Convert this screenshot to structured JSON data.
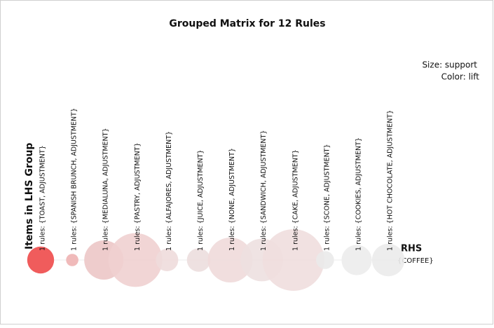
{
  "chart_data": {
    "type": "grouped-matrix",
    "title": "Grouped Matrix for 12 Rules",
    "size_label": "Size: support",
    "color_label": "Color: lift",
    "ylabel": "Items in LHS Group",
    "rhs_title": "RHS",
    "rhs_items": [
      "{COFFEE}"
    ],
    "categories": [
      "1 rules: {TOAST, ADJUSTMENT}",
      "1 rules: {SPANISH BRUNCH, ADJUSTMENT}",
      "1 rules: {MEDIALUNA, ADJUSTMENT}",
      "1 rules: {PASTRY, ADJUSTMENT}",
      "1 rules: {ALFAJORES, ADJUSTMENT}",
      "1 rules: {JUICE, ADJUSTMENT}",
      "1 rules: {NONE, ADJUSTMENT}",
      "1 rules: {SANDWICH, ADJUSTMENT}",
      "1 rules: {CAKE, ADJUSTMENT}",
      "1 rules: {SCONE, ADJUSTMENT}",
      "1 rules: {COOKIES, ADJUSTMENT}",
      "1 rules: {HOT CHOCOLATE, ADJUSTMENT}"
    ],
    "values": [
      0.024,
      0.011,
      0.035,
      0.048,
      0.02,
      0.021,
      0.04,
      0.038,
      0.055,
      0.016,
      0.027,
      0.029
    ],
    "colors": [
      "#ee4a4a",
      "#eeb3b3",
      "#ecc7c7",
      "#efd0d0",
      "#eedcdc",
      "#ecdede",
      "#efdada",
      "#ede0e0",
      "#efdede",
      "#eaeaea",
      "#ececec",
      "#ebebeb"
    ]
  }
}
